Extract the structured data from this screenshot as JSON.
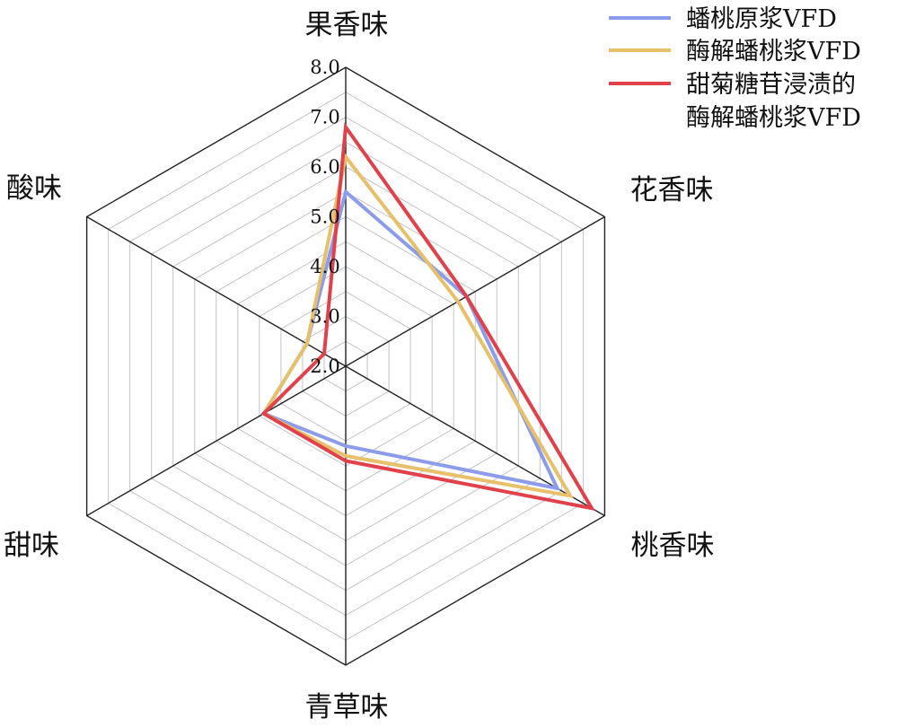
{
  "chart_data": {
    "type": "radar",
    "axes": [
      "果香味",
      "花香味",
      "桃香味",
      "青草味",
      "甜味",
      "酸味"
    ],
    "rmin": 2.0,
    "rmax": 8.0,
    "ticks": [
      "2.0",
      "3.0",
      "4.0",
      "5.0",
      "6.0",
      "7.0",
      "8.0"
    ],
    "grid": true,
    "legend_position": "top-right",
    "series": [
      {
        "name": "蟠桃原浆VFD",
        "color": "#8c9bea",
        "values": [
          5.5,
          4.8,
          6.9,
          3.6,
          3.9,
          2.9
        ]
      },
      {
        "name": "酶解蟠桃浆VFD",
        "color": "#e6c06a",
        "values": [
          6.2,
          4.6,
          7.2,
          3.8,
          3.9,
          2.9
        ]
      },
      {
        "name": "甜菊糖苷浸渍的酶解蟠桃浆VFD",
        "color": "#e0414a",
        "values": [
          6.8,
          4.8,
          7.7,
          3.9,
          3.9,
          2.5
        ]
      }
    ],
    "legend_lines": [
      [
        "蟠桃原浆VFD"
      ],
      [
        "酶解蟠桃浆VFD"
      ],
      [
        "甜菊糖苷浸渍的",
        "酶解蟠桃浆VFD"
      ]
    ]
  }
}
